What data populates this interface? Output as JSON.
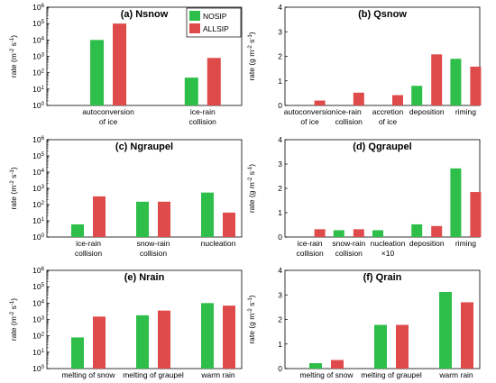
{
  "colors": {
    "NOSIP": "#2ebf4a",
    "ALLSIP": "#df4b4b"
  },
  "chart_data": [
    {
      "id": "a",
      "type": "bar",
      "title": "(a) Nsnow",
      "scale": "log",
      "ylabel": "rate (m^-2 s^-1)",
      "ylim": [
        1,
        1000000
      ],
      "yticks": [
        "10^0",
        "10^1",
        "10^2",
        "10^3",
        "10^4",
        "10^5",
        "10^6"
      ],
      "categories": [
        [
          "autoconversion",
          "of ice"
        ],
        [
          "ice-rain",
          "collision"
        ]
      ],
      "series": [
        {
          "name": "NOSIP",
          "values": [
            10000,
            50
          ]
        },
        {
          "name": "ALLSIP",
          "values": [
            100000,
            800
          ]
        }
      ],
      "legend": "top-right"
    },
    {
      "id": "b",
      "type": "bar",
      "title": "(b) Qsnow",
      "scale": "linear",
      "ylabel": "rate (g m^-2 s^-1)",
      "ylim": [
        0,
        4
      ],
      "yticks": [
        "0",
        "1",
        "2",
        "3",
        "4"
      ],
      "categories": [
        [
          "autoconversion",
          "of ice"
        ],
        [
          "ice-rain",
          "collision"
        ],
        [
          "accretion",
          "of ice"
        ],
        [
          "deposition"
        ],
        [
          "riming"
        ]
      ],
      "series": [
        {
          "name": "NOSIP",
          "values": [
            0.0,
            0.0,
            0.0,
            0.8,
            1.9
          ]
        },
        {
          "name": "ALLSIP",
          "values": [
            0.2,
            0.52,
            0.42,
            2.08,
            1.58
          ]
        }
      ]
    },
    {
      "id": "c",
      "type": "bar",
      "title": "(c) Ngraupel",
      "scale": "log",
      "ylabel": "rate (m^-2 s^-1)",
      "ylim": [
        1,
        1000000
      ],
      "yticks": [
        "10^0",
        "10^1",
        "10^2",
        "10^3",
        "10^4",
        "10^5",
        "10^6"
      ],
      "categories": [
        [
          "ice-rain",
          "collision"
        ],
        [
          "snow-rain",
          "collision"
        ],
        [
          "nucleation"
        ]
      ],
      "series": [
        {
          "name": "NOSIP",
          "values": [
            6,
            150,
            550
          ]
        },
        {
          "name": "ALLSIP",
          "values": [
            320,
            150,
            32
          ]
        }
      ]
    },
    {
      "id": "d",
      "type": "bar",
      "title": "(d) Qgraupel",
      "scale": "linear",
      "ylabel": "rate (g m^-2 s^-1)",
      "ylim": [
        0,
        4
      ],
      "yticks": [
        "0",
        "1",
        "2",
        "3",
        "4"
      ],
      "categories": [
        [
          "ice-rain",
          "collision"
        ],
        [
          "snow-rain",
          "collision"
        ],
        [
          "nucleation",
          "×10"
        ],
        [
          "deposition"
        ],
        [
          "riming"
        ]
      ],
      "series": [
        {
          "name": "NOSIP",
          "values": [
            0.0,
            0.28,
            0.28,
            0.52,
            2.82
          ]
        },
        {
          "name": "ALLSIP",
          "values": [
            0.32,
            0.32,
            0.0,
            0.45,
            1.85
          ]
        }
      ]
    },
    {
      "id": "e",
      "type": "bar",
      "title": "(e) Nrain",
      "scale": "log",
      "ylabel": "rate (m^-2 s^-1)",
      "ylim": [
        1,
        1000000
      ],
      "yticks": [
        "10^0",
        "10^1",
        "10^2",
        "10^3",
        "10^4",
        "10^5",
        "10^6"
      ],
      "categories": [
        [
          "melting of snow"
        ],
        [
          "melting of graupel"
        ],
        [
          "warm rain"
        ]
      ],
      "series": [
        {
          "name": "NOSIP",
          "values": [
            80,
            1800,
            10000
          ]
        },
        {
          "name": "ALLSIP",
          "values": [
            1500,
            3500,
            7000
          ]
        }
      ]
    },
    {
      "id": "f",
      "type": "bar",
      "title": "(f) Qrain",
      "scale": "linear",
      "ylabel": "rate (g m^-2 s^-1)",
      "ylim": [
        0,
        4
      ],
      "yticks": [
        "0",
        "1",
        "2",
        "3",
        "4"
      ],
      "categories": [
        [
          "melting of snow"
        ],
        [
          "melting of graupel"
        ],
        [
          "warm rain"
        ]
      ],
      "series": [
        {
          "name": "NOSIP",
          "values": [
            0.22,
            1.78,
            3.12
          ]
        },
        {
          "name": "ALLSIP",
          "values": [
            0.35,
            1.78,
            2.7
          ]
        }
      ]
    }
  ]
}
